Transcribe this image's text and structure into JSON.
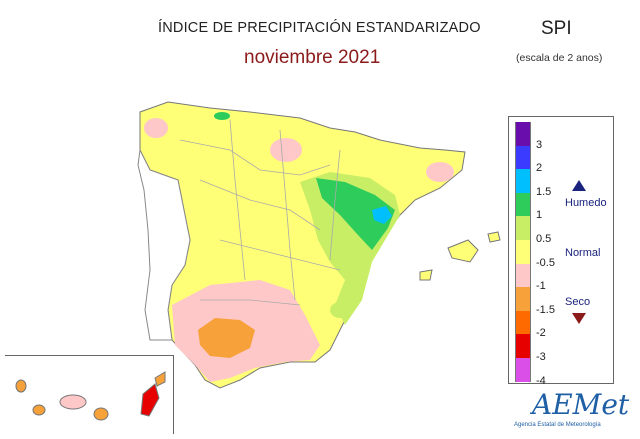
{
  "header": {
    "title": "ÍNDICE DE PRECIPITACIÓN ESTANDARIZADO",
    "subtitle": "noviembre 2021",
    "index_label": "SPI",
    "scale_note": "(escala de 2 anos)"
  },
  "legend": {
    "ticks": [
      "3",
      "2",
      "1.5",
      "1",
      "0.5",
      "-0.5",
      "-1",
      "-1.5",
      "-2",
      "-3",
      "-4"
    ],
    "colors": [
      "#6a0dad",
      "#3b3bff",
      "#00bfff",
      "#2ecc5b",
      "#c8ee66",
      "#ffff77",
      "#ffc8c8",
      "#f7a13a",
      "#ff6a00",
      "#e60000",
      "#d94fe8"
    ],
    "categories": {
      "wet": "Humedo",
      "normal": "Normal",
      "dry": "Seco"
    }
  },
  "logo": {
    "name": "AEMet",
    "subtitle": "Agencia Estatal de Meteorología"
  }
}
